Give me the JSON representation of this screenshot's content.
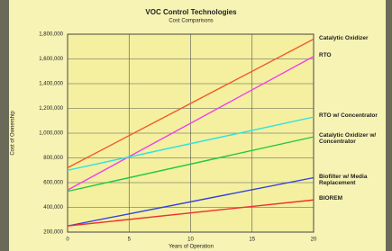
{
  "chart_data": {
    "type": "line",
    "title": "VOC Control Technologies",
    "subtitle": "Cost Comparisons",
    "y_label": "Cost of Ownership",
    "x_label": "Years of Operation",
    "x": [
      0,
      20
    ],
    "xlim": [
      0,
      20
    ],
    "xticks": [
      0,
      5,
      10,
      15,
      20
    ],
    "ylim": [
      200000,
      1800000
    ],
    "yticks": [
      {
        "value": 200000,
        "label": "200,000"
      },
      {
        "value": 400000,
        "label": "400,000"
      },
      {
        "value": 600000,
        "label": "600,000"
      },
      {
        "value": 800000,
        "label": "800,000"
      },
      {
        "value": 1000000,
        "label": "1,000,000"
      },
      {
        "value": 1200000,
        "label": "1,200,000"
      },
      {
        "value": 1400000,
        "label": "1,400,000"
      },
      {
        "value": 1600000,
        "label": "1,600,000"
      },
      {
        "value": 1800000,
        "label": "1,800,000"
      }
    ],
    "grid": true,
    "series": [
      {
        "name": "Catalytic Oxidizer",
        "color": "#f05a28",
        "values": [
          720000,
          1760000
        ]
      },
      {
        "name": "RTO",
        "color": "#f040e8",
        "values": [
          540000,
          1620000
        ]
      },
      {
        "name": "RTO w/ Concentrator",
        "color": "#30e0e0",
        "values": [
          700000,
          1130000
        ]
      },
      {
        "name": "Catalytic Oxidizer w/ Concentrator",
        "color": "#20c840",
        "values": [
          530000,
          970000
        ]
      },
      {
        "name": "Biofilter w/ Media Replacement",
        "color": "#3040e0",
        "values": [
          250000,
          640000
        ]
      },
      {
        "name": "BIOREM",
        "color": "#f03030",
        "values": [
          250000,
          460000
        ]
      }
    ]
  }
}
